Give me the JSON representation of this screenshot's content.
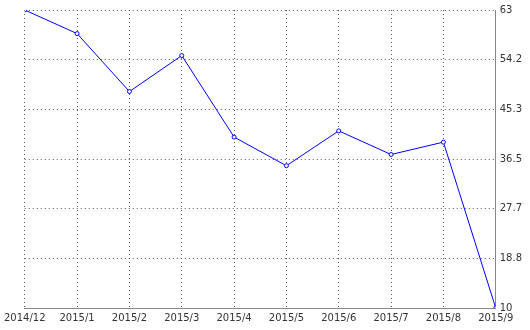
{
  "chart_data": {
    "type": "line",
    "categories": [
      "2014/12",
      "2015/1",
      "2015/2",
      "2015/3",
      "2015/4",
      "2015/5",
      "2015/6",
      "2015/7",
      "2015/8",
      "2015/9"
    ],
    "values": [
      63,
      58.8,
      48.5,
      54.9,
      40.4,
      35.3,
      41.5,
      37.3,
      39.5,
      10
    ],
    "color": "#0000ff",
    "marker": "circle",
    "line_style": "solid",
    "ylim": [
      10,
      63
    ],
    "yticks": [
      10,
      18.8,
      27.7,
      36.5,
      45.3,
      54.2,
      63
    ],
    "grid": true
  }
}
